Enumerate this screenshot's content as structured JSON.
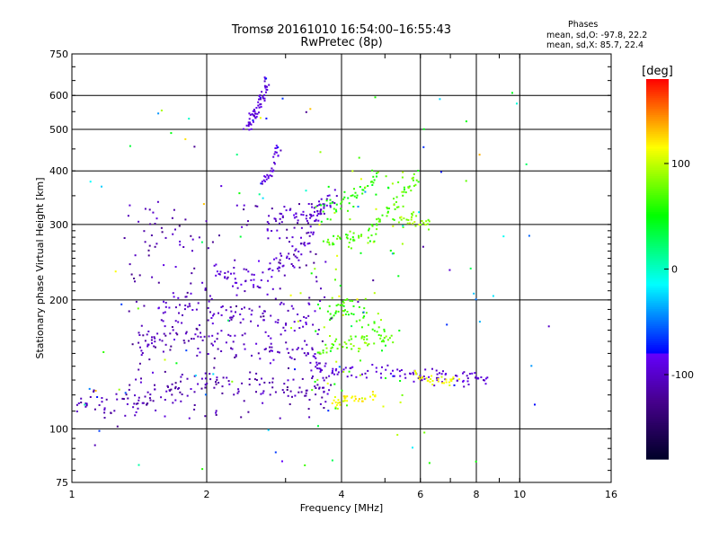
{
  "chart_data": {
    "type": "scatter",
    "title": "Tromsø 20161010 16:54:00–16:55:43",
    "subtitle": "RwPretec (8p)",
    "xlabel": "Frequency [MHz]",
    "ylabel": "Stationary phase Virtual Height [km]",
    "x_scale": "log",
    "y_scale": "log",
    "xlim": [
      1,
      16
    ],
    "ylim": [
      75,
      750
    ],
    "x_ticks": [
      1,
      2,
      4,
      6,
      8,
      10,
      16
    ],
    "x_tick_labels": [
      "1",
      "2",
      "4",
      "6",
      "8",
      "10",
      "16"
    ],
    "x_major_gridlines": [
      2,
      4,
      6,
      8,
      10
    ],
    "y_ticks": [
      75,
      100,
      200,
      300,
      400,
      500,
      600,
      750
    ],
    "y_tick_labels": [
      "75",
      "100",
      "200",
      "300",
      "400",
      "500",
      "600",
      "750"
    ],
    "grid": true,
    "colorbar": {
      "label": "[deg]",
      "range": [
        -180,
        180
      ],
      "ticks": [
        100,
        0,
        -100
      ],
      "tick_labels": [
        "100",
        "0",
        "-100"
      ],
      "colormap": "rainbow"
    },
    "phases_box": {
      "title": "Phases",
      "line_o": "mean, sd,O: -97.8, 22.2",
      "line_x": "mean, sd,X:  85.7, 22.4"
    },
    "traces": [
      {
        "pts": [
          [
            1.02,
            112
          ],
          [
            1.1,
            115
          ],
          [
            1.2,
            113
          ],
          [
            1.35,
            115
          ],
          [
            1.45,
            117
          ],
          [
            1.55,
            120
          ],
          [
            1.7,
            125
          ],
          [
            1.85,
            128
          ],
          [
            2.0,
            130
          ],
          [
            2.3,
            128
          ],
          [
            2.6,
            126
          ],
          [
            2.9,
            124
          ],
          [
            3.2,
            123
          ],
          [
            3.5,
            122
          ],
          [
            3.7,
            122
          ]
        ],
        "phase": -110,
        "spread": 0.06
      },
      {
        "pts": [
          [
            1.4,
            150
          ],
          [
            1.5,
            160
          ],
          [
            1.6,
            165
          ],
          [
            1.8,
            162
          ],
          [
            2.0,
            160
          ],
          [
            2.2,
            158
          ],
          [
            2.5,
            157
          ],
          [
            2.8,
            155
          ],
          [
            3.1,
            152
          ],
          [
            3.4,
            150
          ],
          [
            3.6,
            148
          ]
        ],
        "phase": -105,
        "spread": 0.06
      },
      {
        "pts": [
          [
            1.5,
            185
          ],
          [
            1.7,
            190
          ],
          [
            1.9,
            195
          ],
          [
            2.1,
            190
          ],
          [
            2.4,
            186
          ],
          [
            2.7,
            183
          ],
          [
            3.0,
            180
          ],
          [
            3.3,
            178
          ],
          [
            3.6,
            176
          ]
        ],
        "phase": -100,
        "spread": 0.07
      },
      {
        "pts": [
          [
            2.05,
            230
          ],
          [
            2.2,
            225
          ],
          [
            2.4,
            222
          ],
          [
            2.6,
            225
          ],
          [
            2.8,
            235
          ],
          [
            3.0,
            245
          ],
          [
            3.2,
            265
          ],
          [
            3.4,
            290
          ],
          [
            3.55,
            320
          ],
          [
            3.7,
            345
          ]
        ],
        "phase": -95,
        "spread": 0.06
      },
      {
        "pts": [
          [
            2.7,
            300
          ],
          [
            2.9,
            305
          ],
          [
            3.1,
            310
          ],
          [
            3.3,
            315
          ],
          [
            3.5,
            320
          ],
          [
            3.7,
            330
          ],
          [
            3.9,
            340
          ]
        ],
        "phase": -100,
        "spread": 0.05
      },
      {
        "pts": [
          [
            2.45,
            500
          ],
          [
            2.5,
            520
          ],
          [
            2.55,
            540
          ],
          [
            2.6,
            560
          ],
          [
            2.65,
            590
          ],
          [
            2.7,
            620
          ],
          [
            2.72,
            645
          ]
        ],
        "phase": -92,
        "spread": 0.04
      },
      {
        "pts": [
          [
            2.65,
            370
          ],
          [
            2.75,
            390
          ],
          [
            2.85,
            430
          ],
          [
            2.9,
            460
          ]
        ],
        "phase": -90,
        "spread": 0.03
      },
      {
        "pts": [
          [
            3.4,
            140
          ],
          [
            3.7,
            138
          ],
          [
            4.0,
            137
          ],
          [
            4.5,
            136
          ],
          [
            5.0,
            135
          ],
          [
            5.5,
            134
          ],
          [
            6.0,
            133
          ],
          [
            6.5,
            132
          ],
          [
            7.0,
            132
          ],
          [
            7.5,
            131
          ],
          [
            8.0,
            131
          ],
          [
            8.5,
            130
          ]
        ],
        "phase": -95,
        "spread": 0.03
      },
      {
        "pts": [
          [
            3.5,
            150
          ],
          [
            3.8,
            155
          ],
          [
            4.1,
            158
          ],
          [
            4.4,
            160
          ],
          [
            4.8,
            162
          ],
          [
            5.2,
            163
          ]
        ],
        "phase": 75,
        "spread": 0.03
      },
      {
        "pts": [
          [
            3.7,
            185
          ],
          [
            3.9,
            190
          ],
          [
            4.1,
            195
          ],
          [
            4.3,
            190
          ],
          [
            4.6,
            175
          ],
          [
            5.0,
            165
          ]
        ],
        "phase": 65,
        "spread": 0.05
      },
      {
        "pts": [
          [
            3.8,
            115
          ],
          [
            4.0,
            116
          ],
          [
            4.2,
            117
          ],
          [
            4.5,
            118
          ],
          [
            4.8,
            119
          ]
        ],
        "phase": 115,
        "spread": 0.02
      },
      {
        "pts": [
          [
            3.6,
            270
          ],
          [
            3.9,
            272
          ],
          [
            4.2,
            276
          ],
          [
            4.5,
            285
          ],
          [
            4.8,
            300
          ],
          [
            5.1,
            320
          ],
          [
            5.4,
            345
          ],
          [
            5.7,
            370
          ],
          [
            6.0,
            390
          ]
        ],
        "phase": 70,
        "spread": 0.04
      },
      {
        "pts": [
          [
            3.6,
            320
          ],
          [
            3.9,
            330
          ],
          [
            4.2,
            345
          ],
          [
            4.5,
            365
          ],
          [
            4.8,
            395
          ]
        ],
        "phase": 55,
        "spread": 0.04
      },
      {
        "pts": [
          [
            5.4,
            305
          ],
          [
            5.7,
            310
          ],
          [
            6.0,
            305
          ],
          [
            6.3,
            300
          ]
        ],
        "phase": 85,
        "spread": 0.03
      },
      {
        "pts": [
          [
            5.8,
            133
          ],
          [
            6.3,
            130
          ],
          [
            6.8,
            129
          ],
          [
            7.3,
            130
          ]
        ],
        "phase": 110,
        "spread": 0.02
      }
    ],
    "scatter_count": 420,
    "scatter_phase_range": [
      -130,
      140
    ]
  }
}
